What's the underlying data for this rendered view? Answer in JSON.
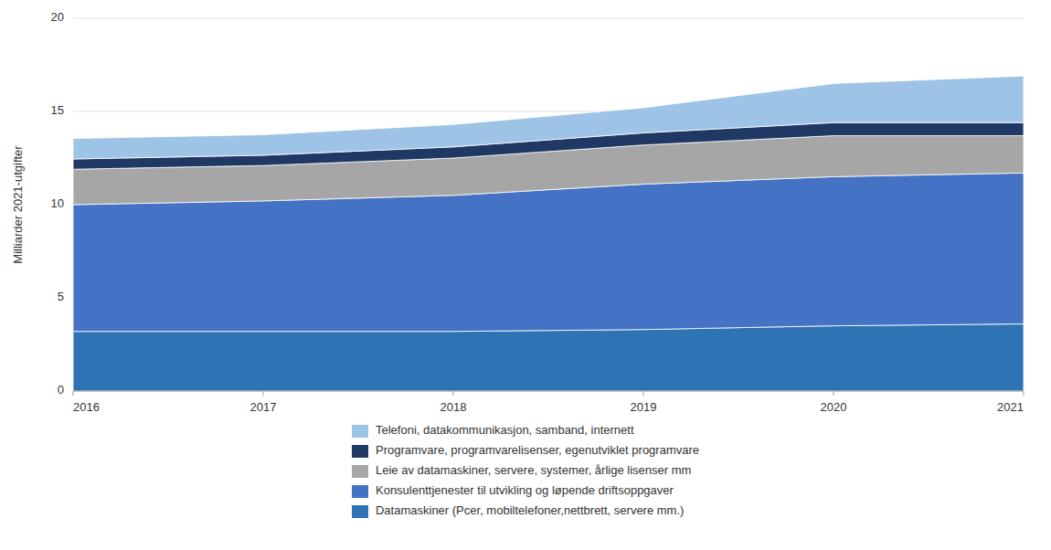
{
  "chart_data": {
    "type": "area",
    "stacked": true,
    "x": [
      2016,
      2017,
      2018,
      2019,
      2020,
      2021
    ],
    "series": [
      {
        "name": "Datamaskiner (Pcer, mobiltelefoner,nettbrett, servere mm.)",
        "color": "#2E74B5",
        "values": [
          3.2,
          3.2,
          3.2,
          3.3,
          3.5,
          3.6
        ]
      },
      {
        "name": "Konsulenttjenester til utvikling og løpende driftsoppgaver",
        "color": "#4472C4",
        "values": [
          6.8,
          7.0,
          7.3,
          7.8,
          8.0,
          8.1
        ]
      },
      {
        "name": "Leie av datamaskiner, servere, systemer, årlige lisenser mm",
        "color": "#A6A6A6",
        "values": [
          1.9,
          1.9,
          2.0,
          2.1,
          2.2,
          2.0
        ]
      },
      {
        "name": "Programvare, programvarelisenser, egenutviklet programvare",
        "color": "#1F3864",
        "values": [
          0.55,
          0.55,
          0.6,
          0.65,
          0.7,
          0.7
        ]
      },
      {
        "name": "Telefoni, datakommunikasjon, samband, internett",
        "color": "#9DC3E6",
        "values": [
          1.1,
          1.1,
          1.2,
          1.35,
          2.1,
          2.5
        ]
      }
    ],
    "ylabel": "Milliarder 2021-utgifter",
    "xlim": [
      2016,
      2021
    ],
    "xticks": [
      2016,
      2017,
      2018,
      2019,
      2020,
      2021
    ],
    "ylim": [
      0,
      20
    ],
    "yticks": [
      0,
      5,
      10,
      15,
      20
    ],
    "grid": true,
    "legend": "bottom"
  }
}
